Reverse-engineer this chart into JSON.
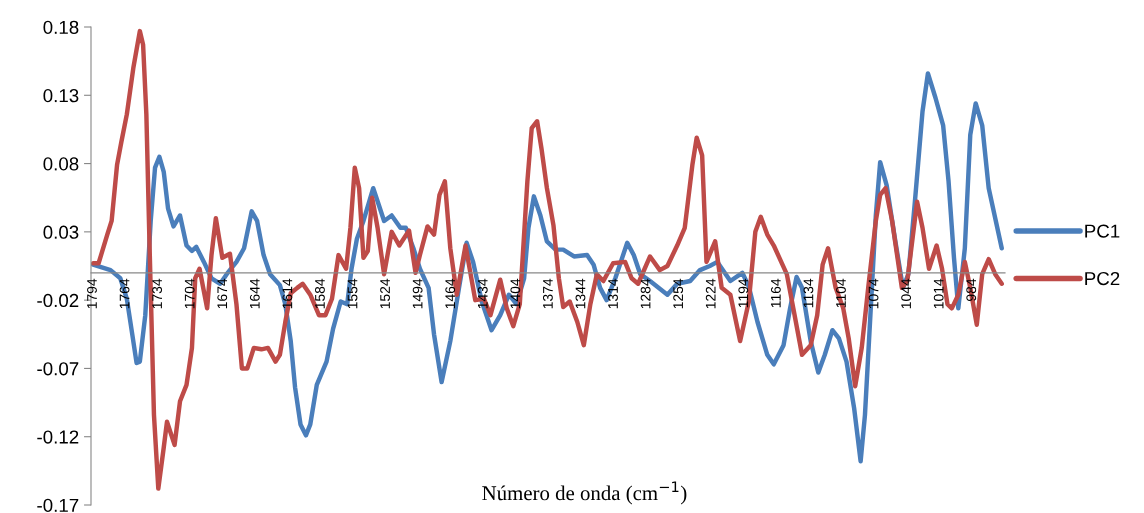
{
  "chart_data": {
    "type": "line",
    "xlabel": "Número de onda (cm$^{−1}$)",
    "xlim": [
      1796,
      954
    ],
    "ylim": [
      -0.17,
      0.18
    ],
    "xticks": [
      1794,
      1764,
      1734,
      1704,
      1674,
      1644,
      1614,
      1584,
      1554,
      1524,
      1494,
      1464,
      1434,
      1404,
      1374,
      1344,
      1314,
      1284,
      1254,
      1224,
      1194,
      1164,
      1134,
      1104,
      1074,
      1044,
      1014,
      984
    ],
    "yticks": [
      -0.17,
      -0.12,
      -0.07,
      -0.02,
      0.03,
      0.08,
      0.13,
      0.18
    ],
    "grid": false,
    "legend": "right",
    "marker": "none",
    "line_style": "solid",
    "series": [
      {
        "name": "PC1",
        "color": "#4a7ebb",
        "x": [
          1794,
          1778,
          1769,
          1763,
          1758,
          1754,
          1751,
          1746,
          1741,
          1737,
          1733,
          1729,
          1725,
          1720,
          1714,
          1708,
          1703,
          1699,
          1692,
          1685,
          1677,
          1671,
          1662,
          1655,
          1648,
          1643,
          1637,
          1631,
          1622,
          1617,
          1612,
          1608,
          1603,
          1598,
          1594,
          1588,
          1579,
          1573,
          1566,
          1560,
          1556,
          1551,
          1545,
          1536,
          1531,
          1526,
          1519,
          1511,
          1506,
          1499,
          1493,
          1485,
          1480,
          1473,
          1465,
          1457,
          1450,
          1444,
          1436,
          1427,
          1419,
          1411,
          1404,
          1397,
          1393,
          1388,
          1382,
          1376,
          1368,
          1361,
          1351,
          1339,
          1333,
          1327,
          1321,
          1313,
          1302,
          1296,
          1290,
          1281,
          1265,
          1256,
          1244,
          1235,
          1226,
          1219,
          1213,
          1207,
          1196,
          1190,
          1182,
          1173,
          1167,
          1158,
          1152,
          1146,
          1141,
          1133,
          1126,
          1120,
          1113,
          1107,
          1100,
          1093,
          1087,
          1083,
          1078,
          1073,
          1069,
          1063,
          1055,
          1048,
          1043,
          1037,
          1030,
          1025,
          1018,
          1011,
          1006,
          1001,
          997,
          991,
          986,
          981,
          975,
          969,
          963,
          957
        ],
        "values": [
          0.006,
          0.002,
          -0.004,
          -0.019,
          -0.045,
          -0.066,
          -0.065,
          -0.031,
          0.038,
          0.077,
          0.085,
          0.074,
          0.047,
          0.034,
          0.042,
          0.02,
          0.016,
          0.019,
          0.008,
          -0.004,
          -0.008,
          -0.001,
          0.008,
          0.018,
          0.045,
          0.038,
          0.013,
          -0.001,
          -0.009,
          -0.023,
          -0.05,
          -0.084,
          -0.111,
          -0.119,
          -0.111,
          -0.082,
          -0.065,
          -0.041,
          -0.021,
          -0.023,
          0.003,
          0.025,
          0.038,
          0.062,
          0.05,
          0.038,
          0.042,
          0.033,
          0.033,
          0.018,
          0.003,
          -0.011,
          -0.045,
          -0.08,
          -0.05,
          -0.011,
          0.022,
          0.008,
          -0.021,
          -0.042,
          -0.031,
          -0.016,
          -0.023,
          -0.004,
          0.033,
          0.056,
          0.042,
          0.023,
          0.017,
          0.017,
          0.012,
          0.013,
          0.006,
          -0.011,
          -0.02,
          -0.004,
          0.022,
          0.013,
          -0.001,
          -0.006,
          -0.016,
          -0.008,
          -0.006,
          0.002,
          0.005,
          0.008,
          0.001,
          -0.006,
          0.0,
          -0.01,
          -0.036,
          -0.06,
          -0.067,
          -0.053,
          -0.026,
          -0.003,
          -0.011,
          -0.05,
          -0.073,
          -0.06,
          -0.042,
          -0.048,
          -0.065,
          -0.099,
          -0.138,
          -0.104,
          -0.031,
          0.042,
          0.081,
          0.064,
          0.023,
          -0.011,
          -0.001,
          0.052,
          0.118,
          0.146,
          0.128,
          0.108,
          0.067,
          0.011,
          -0.026,
          0.018,
          0.101,
          0.124,
          0.108,
          0.062,
          0.04,
          0.018
        ]
      },
      {
        "name": "PC2",
        "color": "#be4b48",
        "x": [
          1794,
          1789,
          1781,
          1777,
          1772,
          1768,
          1763,
          1757,
          1751,
          1748,
          1745,
          1742,
          1738,
          1734,
          1729,
          1726,
          1719,
          1714,
          1708,
          1703,
          1700,
          1696,
          1689,
          1685,
          1681,
          1675,
          1668,
          1662,
          1657,
          1652,
          1646,
          1639,
          1633,
          1626,
          1622,
          1617,
          1612,
          1606,
          1601,
          1594,
          1586,
          1580,
          1574,
          1568,
          1561,
          1557,
          1553,
          1549,
          1545,
          1541,
          1537,
          1532,
          1526,
          1519,
          1512,
          1503,
          1497,
          1493,
          1486,
          1480,
          1475,
          1470,
          1465,
          1459,
          1451,
          1442,
          1434,
          1428,
          1419,
          1413,
          1407,
          1401,
          1394,
          1390,
          1385,
          1381,
          1376,
          1370,
          1365,
          1361,
          1355,
          1348,
          1342,
          1336,
          1330,
          1324,
          1315,
          1304,
          1298,
          1292,
          1281,
          1272,
          1265,
          1256,
          1249,
          1242,
          1238,
          1233,
          1229,
          1221,
          1215,
          1207,
          1198,
          1190,
          1184,
          1179,
          1173,
          1167,
          1159,
          1155,
          1149,
          1141,
          1133,
          1127,
          1122,
          1117,
          1110,
          1103,
          1098,
          1092,
          1086,
          1080,
          1073,
          1069,
          1064,
          1058,
          1049,
          1044,
          1035,
          1030,
          1024,
          1017,
          1012,
          1007,
          1003,
          997,
          991,
          986,
          980,
          975,
          969,
          963,
          957
        ],
        "values": [
          0.007,
          0.007,
          0.028,
          0.038,
          0.079,
          0.096,
          0.116,
          0.15,
          0.177,
          0.167,
          0.116,
          0.018,
          -0.104,
          -0.158,
          -0.128,
          -0.109,
          -0.126,
          -0.094,
          -0.082,
          -0.055,
          -0.004,
          0.003,
          -0.026,
          0.013,
          0.04,
          0.011,
          0.014,
          -0.023,
          -0.07,
          -0.07,
          -0.055,
          -0.056,
          -0.055,
          -0.065,
          -0.06,
          -0.036,
          -0.015,
          -0.011,
          -0.008,
          -0.016,
          -0.031,
          -0.031,
          -0.019,
          0.013,
          0.003,
          0.033,
          0.077,
          0.062,
          0.011,
          0.016,
          0.055,
          0.033,
          -0.001,
          0.03,
          0.02,
          0.031,
          0.0,
          0.013,
          0.034,
          0.028,
          0.057,
          0.067,
          0.018,
          -0.016,
          0.02,
          -0.02,
          -0.019,
          -0.031,
          -0.005,
          -0.026,
          -0.039,
          -0.023,
          0.067,
          0.106,
          0.111,
          0.091,
          0.062,
          0.035,
          -0.004,
          -0.025,
          -0.021,
          -0.036,
          -0.053,
          -0.023,
          -0.001,
          -0.006,
          0.007,
          0.008,
          -0.004,
          -0.008,
          0.012,
          0.002,
          0.005,
          0.02,
          0.033,
          0.079,
          0.099,
          0.086,
          0.008,
          0.023,
          -0.011,
          -0.016,
          -0.05,
          -0.021,
          0.03,
          0.041,
          0.028,
          0.02,
          0.006,
          -0.001,
          -0.026,
          -0.06,
          -0.053,
          -0.031,
          0.006,
          0.018,
          -0.011,
          -0.026,
          -0.048,
          -0.083,
          -0.055,
          -0.011,
          0.038,
          0.057,
          0.062,
          0.038,
          -0.011,
          -0.006,
          0.052,
          0.033,
          0.003,
          0.02,
          0.003,
          -0.023,
          -0.026,
          -0.016,
          0.008,
          -0.011,
          -0.038,
          -0.001,
          0.01,
          -0.001,
          -0.008
        ]
      }
    ]
  }
}
